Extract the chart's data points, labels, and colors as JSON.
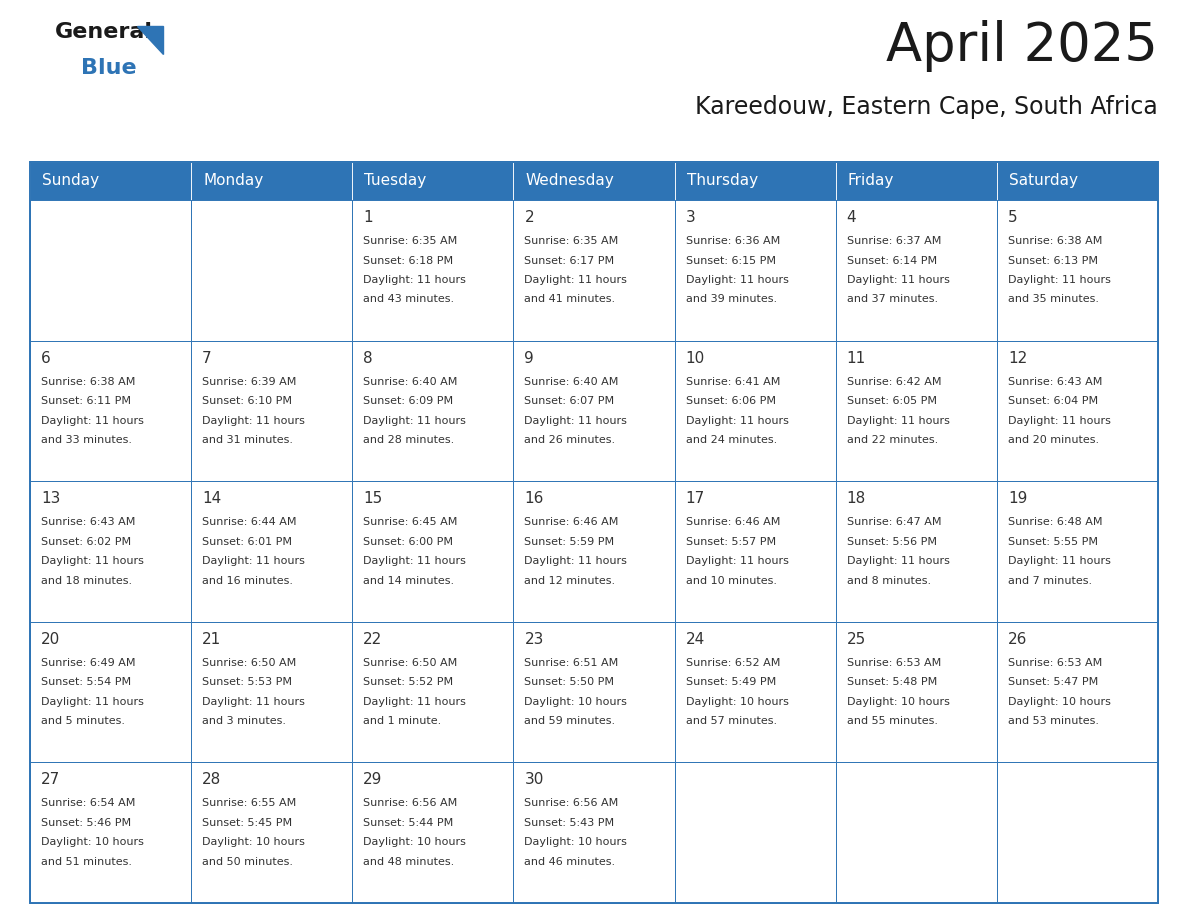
{
  "title": "April 2025",
  "subtitle": "Kareedouw, Eastern Cape, South Africa",
  "header_color": "#2E74B5",
  "header_text_color": "#FFFFFF",
  "border_color": "#2E74B5",
  "text_color": "#333333",
  "days_of_week": [
    "Sunday",
    "Monday",
    "Tuesday",
    "Wednesday",
    "Thursday",
    "Friday",
    "Saturday"
  ],
  "weeks": [
    [
      {
        "day": "",
        "sunrise": "",
        "sunset": "",
        "daylight": ""
      },
      {
        "day": "",
        "sunrise": "",
        "sunset": "",
        "daylight": ""
      },
      {
        "day": "1",
        "sunrise": "Sunrise: 6:35 AM",
        "sunset": "Sunset: 6:18 PM",
        "daylight": "Daylight: 11 hours\nand 43 minutes."
      },
      {
        "day": "2",
        "sunrise": "Sunrise: 6:35 AM",
        "sunset": "Sunset: 6:17 PM",
        "daylight": "Daylight: 11 hours\nand 41 minutes."
      },
      {
        "day": "3",
        "sunrise": "Sunrise: 6:36 AM",
        "sunset": "Sunset: 6:15 PM",
        "daylight": "Daylight: 11 hours\nand 39 minutes."
      },
      {
        "day": "4",
        "sunrise": "Sunrise: 6:37 AM",
        "sunset": "Sunset: 6:14 PM",
        "daylight": "Daylight: 11 hours\nand 37 minutes."
      },
      {
        "day": "5",
        "sunrise": "Sunrise: 6:38 AM",
        "sunset": "Sunset: 6:13 PM",
        "daylight": "Daylight: 11 hours\nand 35 minutes."
      }
    ],
    [
      {
        "day": "6",
        "sunrise": "Sunrise: 6:38 AM",
        "sunset": "Sunset: 6:11 PM",
        "daylight": "Daylight: 11 hours\nand 33 minutes."
      },
      {
        "day": "7",
        "sunrise": "Sunrise: 6:39 AM",
        "sunset": "Sunset: 6:10 PM",
        "daylight": "Daylight: 11 hours\nand 31 minutes."
      },
      {
        "day": "8",
        "sunrise": "Sunrise: 6:40 AM",
        "sunset": "Sunset: 6:09 PM",
        "daylight": "Daylight: 11 hours\nand 28 minutes."
      },
      {
        "day": "9",
        "sunrise": "Sunrise: 6:40 AM",
        "sunset": "Sunset: 6:07 PM",
        "daylight": "Daylight: 11 hours\nand 26 minutes."
      },
      {
        "day": "10",
        "sunrise": "Sunrise: 6:41 AM",
        "sunset": "Sunset: 6:06 PM",
        "daylight": "Daylight: 11 hours\nand 24 minutes."
      },
      {
        "day": "11",
        "sunrise": "Sunrise: 6:42 AM",
        "sunset": "Sunset: 6:05 PM",
        "daylight": "Daylight: 11 hours\nand 22 minutes."
      },
      {
        "day": "12",
        "sunrise": "Sunrise: 6:43 AM",
        "sunset": "Sunset: 6:04 PM",
        "daylight": "Daylight: 11 hours\nand 20 minutes."
      }
    ],
    [
      {
        "day": "13",
        "sunrise": "Sunrise: 6:43 AM",
        "sunset": "Sunset: 6:02 PM",
        "daylight": "Daylight: 11 hours\nand 18 minutes."
      },
      {
        "day": "14",
        "sunrise": "Sunrise: 6:44 AM",
        "sunset": "Sunset: 6:01 PM",
        "daylight": "Daylight: 11 hours\nand 16 minutes."
      },
      {
        "day": "15",
        "sunrise": "Sunrise: 6:45 AM",
        "sunset": "Sunset: 6:00 PM",
        "daylight": "Daylight: 11 hours\nand 14 minutes."
      },
      {
        "day": "16",
        "sunrise": "Sunrise: 6:46 AM",
        "sunset": "Sunset: 5:59 PM",
        "daylight": "Daylight: 11 hours\nand 12 minutes."
      },
      {
        "day": "17",
        "sunrise": "Sunrise: 6:46 AM",
        "sunset": "Sunset: 5:57 PM",
        "daylight": "Daylight: 11 hours\nand 10 minutes."
      },
      {
        "day": "18",
        "sunrise": "Sunrise: 6:47 AM",
        "sunset": "Sunset: 5:56 PM",
        "daylight": "Daylight: 11 hours\nand 8 minutes."
      },
      {
        "day": "19",
        "sunrise": "Sunrise: 6:48 AM",
        "sunset": "Sunset: 5:55 PM",
        "daylight": "Daylight: 11 hours\nand 7 minutes."
      }
    ],
    [
      {
        "day": "20",
        "sunrise": "Sunrise: 6:49 AM",
        "sunset": "Sunset: 5:54 PM",
        "daylight": "Daylight: 11 hours\nand 5 minutes."
      },
      {
        "day": "21",
        "sunrise": "Sunrise: 6:50 AM",
        "sunset": "Sunset: 5:53 PM",
        "daylight": "Daylight: 11 hours\nand 3 minutes."
      },
      {
        "day": "22",
        "sunrise": "Sunrise: 6:50 AM",
        "sunset": "Sunset: 5:52 PM",
        "daylight": "Daylight: 11 hours\nand 1 minute."
      },
      {
        "day": "23",
        "sunrise": "Sunrise: 6:51 AM",
        "sunset": "Sunset: 5:50 PM",
        "daylight": "Daylight: 10 hours\nand 59 minutes."
      },
      {
        "day": "24",
        "sunrise": "Sunrise: 6:52 AM",
        "sunset": "Sunset: 5:49 PM",
        "daylight": "Daylight: 10 hours\nand 57 minutes."
      },
      {
        "day": "25",
        "sunrise": "Sunrise: 6:53 AM",
        "sunset": "Sunset: 5:48 PM",
        "daylight": "Daylight: 10 hours\nand 55 minutes."
      },
      {
        "day": "26",
        "sunrise": "Sunrise: 6:53 AM",
        "sunset": "Sunset: 5:47 PM",
        "daylight": "Daylight: 10 hours\nand 53 minutes."
      }
    ],
    [
      {
        "day": "27",
        "sunrise": "Sunrise: 6:54 AM",
        "sunset": "Sunset: 5:46 PM",
        "daylight": "Daylight: 10 hours\nand 51 minutes."
      },
      {
        "day": "28",
        "sunrise": "Sunrise: 6:55 AM",
        "sunset": "Sunset: 5:45 PM",
        "daylight": "Daylight: 10 hours\nand 50 minutes."
      },
      {
        "day": "29",
        "sunrise": "Sunrise: 6:56 AM",
        "sunset": "Sunset: 5:44 PM",
        "daylight": "Daylight: 10 hours\nand 48 minutes."
      },
      {
        "day": "30",
        "sunrise": "Sunrise: 6:56 AM",
        "sunset": "Sunset: 5:43 PM",
        "daylight": "Daylight: 10 hours\nand 46 minutes."
      },
      {
        "day": "",
        "sunrise": "",
        "sunset": "",
        "daylight": ""
      },
      {
        "day": "",
        "sunrise": "",
        "sunset": "",
        "daylight": ""
      },
      {
        "day": "",
        "sunrise": "",
        "sunset": "",
        "daylight": ""
      }
    ]
  ]
}
